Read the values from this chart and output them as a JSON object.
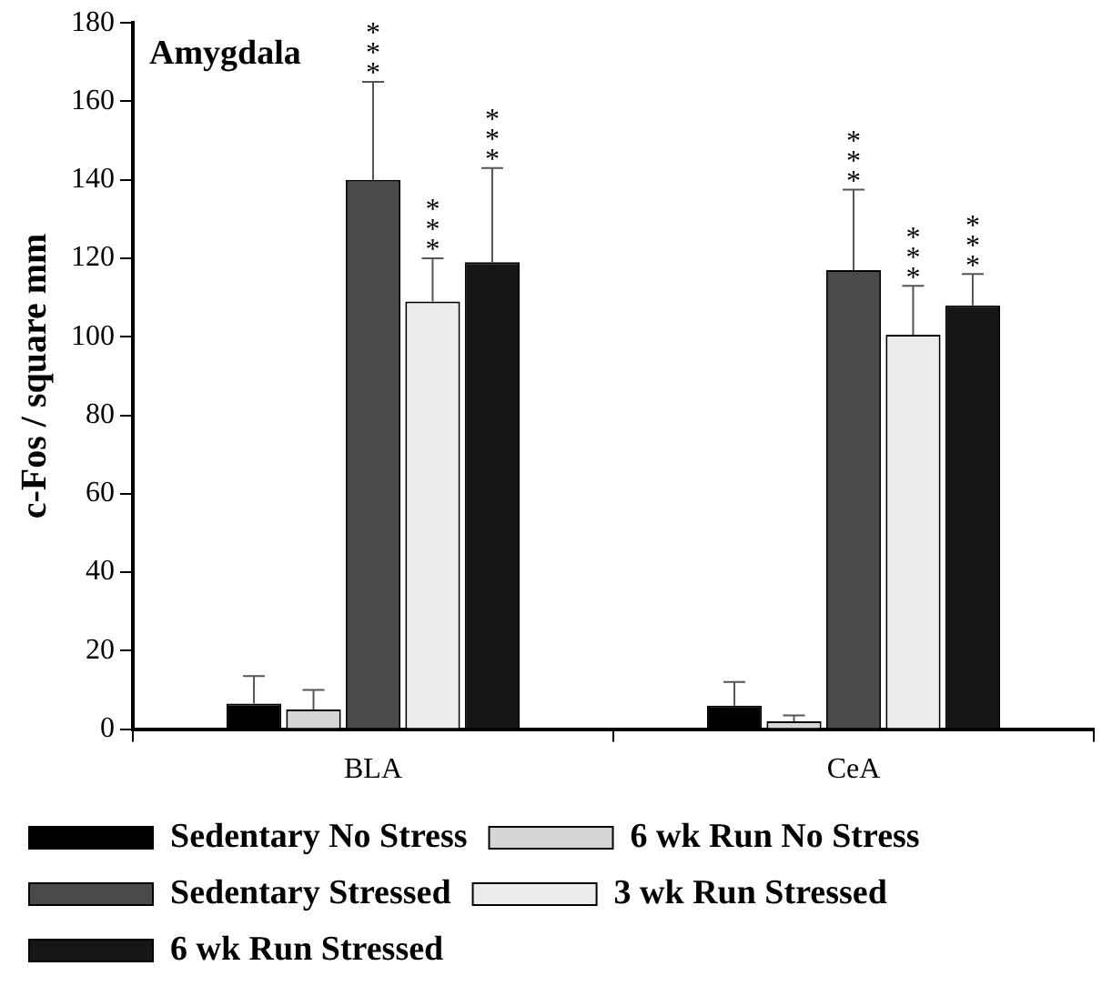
{
  "chart_data": {
    "type": "bar",
    "title": "Amygdala",
    "ylabel": "c-Fos / square mm",
    "categories": [
      "BLA",
      "CeA"
    ],
    "ylim": [
      0,
      180
    ],
    "yticks": [
      0,
      20,
      40,
      60,
      80,
      100,
      120,
      140,
      160,
      180
    ],
    "grid": false,
    "legend": "bottom",
    "annotations": [
      "***",
      "***",
      "***",
      "***",
      "***",
      "***"
    ],
    "series": [
      {
        "name": "Sedentary No Stress",
        "color": "#000000",
        "values": [
          6.5,
          6
        ],
        "errors": [
          [
            6.5,
            13.5
          ],
          [
            6,
            12
          ]
        ]
      },
      {
        "name": "6 wk Run No Stress",
        "color": "#d6d6d6",
        "values": [
          5,
          2
        ],
        "errors": [
          [
            5,
            10
          ],
          [
            2,
            3.5
          ]
        ]
      },
      {
        "name": "Sedentary Stressed",
        "color": "#4a4a4a",
        "values": [
          140,
          117
        ],
        "errors": [
          [
            140,
            165
          ],
          [
            117,
            137.5
          ]
        ]
      },
      {
        "name": "3 wk Run Stressed",
        "color": "#ececec",
        "values": [
          109,
          100.5
        ],
        "errors": [
          [
            109,
            120
          ],
          [
            100.5,
            113
          ]
        ]
      },
      {
        "name": "6 wk Run Stressed",
        "color": "#161616",
        "values": [
          119,
          108
        ],
        "errors": [
          [
            119,
            143
          ],
          [
            108,
            116
          ]
        ]
      }
    ]
  }
}
